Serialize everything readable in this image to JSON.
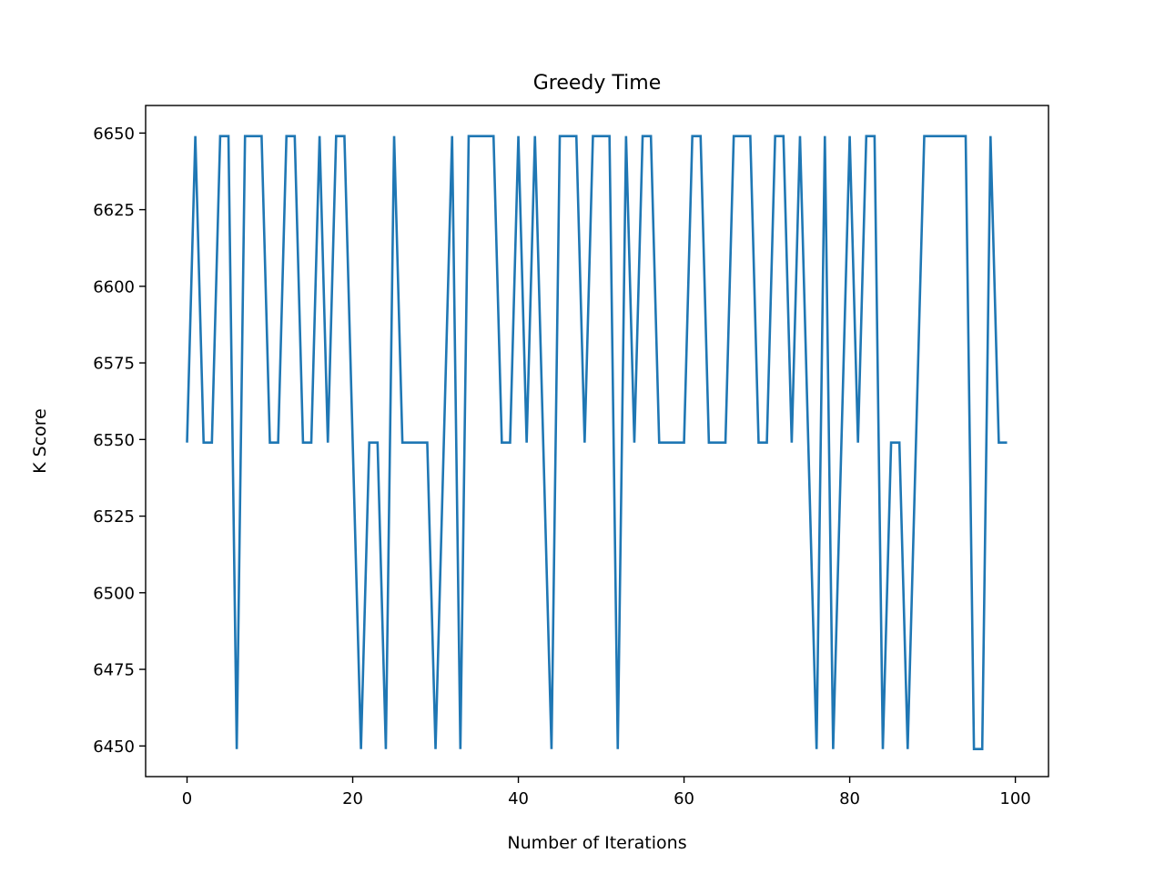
{
  "chart_data": {
    "type": "line",
    "title": "Greedy Time",
    "xlabel": "Number of Iterations",
    "ylabel": "K Score",
    "xlim": [
      -5,
      104
    ],
    "ylim": [
      6440,
      6659
    ],
    "xticks": [
      0,
      20,
      40,
      60,
      80,
      100
    ],
    "yticks": [
      6450,
      6475,
      6500,
      6525,
      6550,
      6575,
      6600,
      6625,
      6650
    ],
    "grid": false,
    "line_color": "#1f77b4",
    "series": [
      {
        "x": [
          0,
          1,
          2,
          3,
          4,
          5,
          6,
          7,
          8,
          9,
          10,
          11,
          12,
          13,
          14,
          15,
          16,
          17,
          18,
          19,
          20,
          21,
          22,
          23,
          24,
          25,
          26,
          27,
          28,
          29,
          30,
          31,
          32,
          33,
          34,
          35,
          36,
          37,
          38,
          39,
          40,
          41,
          42,
          43,
          44,
          45,
          46,
          47,
          48,
          49,
          50,
          51,
          52,
          53,
          54,
          55,
          56,
          57,
          58,
          59,
          60,
          61,
          62,
          63,
          64,
          65,
          66,
          67,
          68,
          69,
          70,
          71,
          72,
          73,
          74,
          75,
          76,
          77,
          78,
          79,
          80,
          81,
          82,
          83,
          84,
          85,
          86,
          87,
          88,
          89,
          90,
          91,
          92,
          93,
          94,
          95,
          96,
          97,
          98,
          99
        ],
        "values": [
          6549,
          6649,
          6549,
          6549,
          6649,
          6649,
          6449,
          6649,
          6649,
          6649,
          6549,
          6549,
          6649,
          6649,
          6549,
          6549,
          6649,
          6549,
          6649,
          6649,
          6549,
          6449,
          6549,
          6549,
          6449,
          6649,
          6549,
          6549,
          6549,
          6549,
          6449,
          6549,
          6649,
          6449,
          6649,
          6649,
          6649,
          6649,
          6549,
          6549,
          6649,
          6549,
          6649,
          6549,
          6449,
          6649,
          6649,
          6649,
          6549,
          6649,
          6649,
          6649,
          6449,
          6649,
          6549,
          6649,
          6649,
          6549,
          6549,
          6549,
          6549,
          6649,
          6649,
          6549,
          6549,
          6549,
          6649,
          6649,
          6649,
          6549,
          6549,
          6649,
          6649,
          6549,
          6649,
          6549,
          6449,
          6649,
          6449,
          6549,
          6649,
          6549,
          6649,
          6649,
          6449,
          6549,
          6549,
          6449,
          6549,
          6649,
          6649,
          6649,
          6649,
          6649,
          6649,
          6449,
          6449,
          6649,
          6549,
          6549
        ]
      }
    ]
  }
}
